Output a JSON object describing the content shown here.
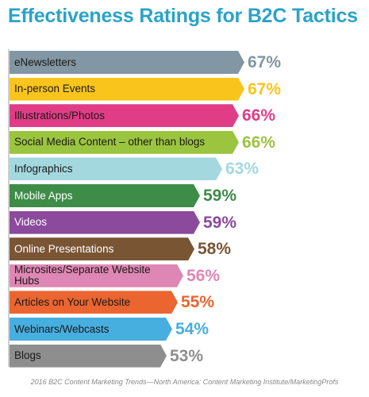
{
  "chart_data": {
    "type": "bar",
    "orientation": "horizontal",
    "title": "Effectiveness Ratings for B2C Tactics",
    "categories": [
      "eNewsletters",
      "In-person Events",
      "Illustrations/Photos",
      "Social Media Content – other than blogs",
      "Infographics",
      "Mobile Apps",
      "Videos",
      "Online Presentations",
      "Microsites/Separate Website Hubs",
      "Articles on Your Website",
      "Webinars/Webcasts",
      "Blogs"
    ],
    "values": [
      67,
      67,
      66,
      66,
      63,
      59,
      59,
      58,
      56,
      55,
      54,
      53
    ],
    "value_labels": [
      "67%",
      "67%",
      "66%",
      "66%",
      "63%",
      "59%",
      "59%",
      "58%",
      "56%",
      "55%",
      "54%",
      "53%"
    ],
    "colors": [
      "#8296a3",
      "#f9c51c",
      "#e13d87",
      "#9bc43f",
      "#a3d8df",
      "#3d8c48",
      "#8b4a9b",
      "#7a5534",
      "#df87b4",
      "#ea6530",
      "#47aee0",
      "#8e8e8e"
    ],
    "label_dark": [
      false,
      false,
      false,
      false,
      false,
      true,
      true,
      true,
      false,
      false,
      false,
      false
    ],
    "grid": false,
    "legend": "none"
  },
  "footer": "2016 B2C Content Marketing Trends—North America: Content Marketing Institute/MarketingProfs"
}
